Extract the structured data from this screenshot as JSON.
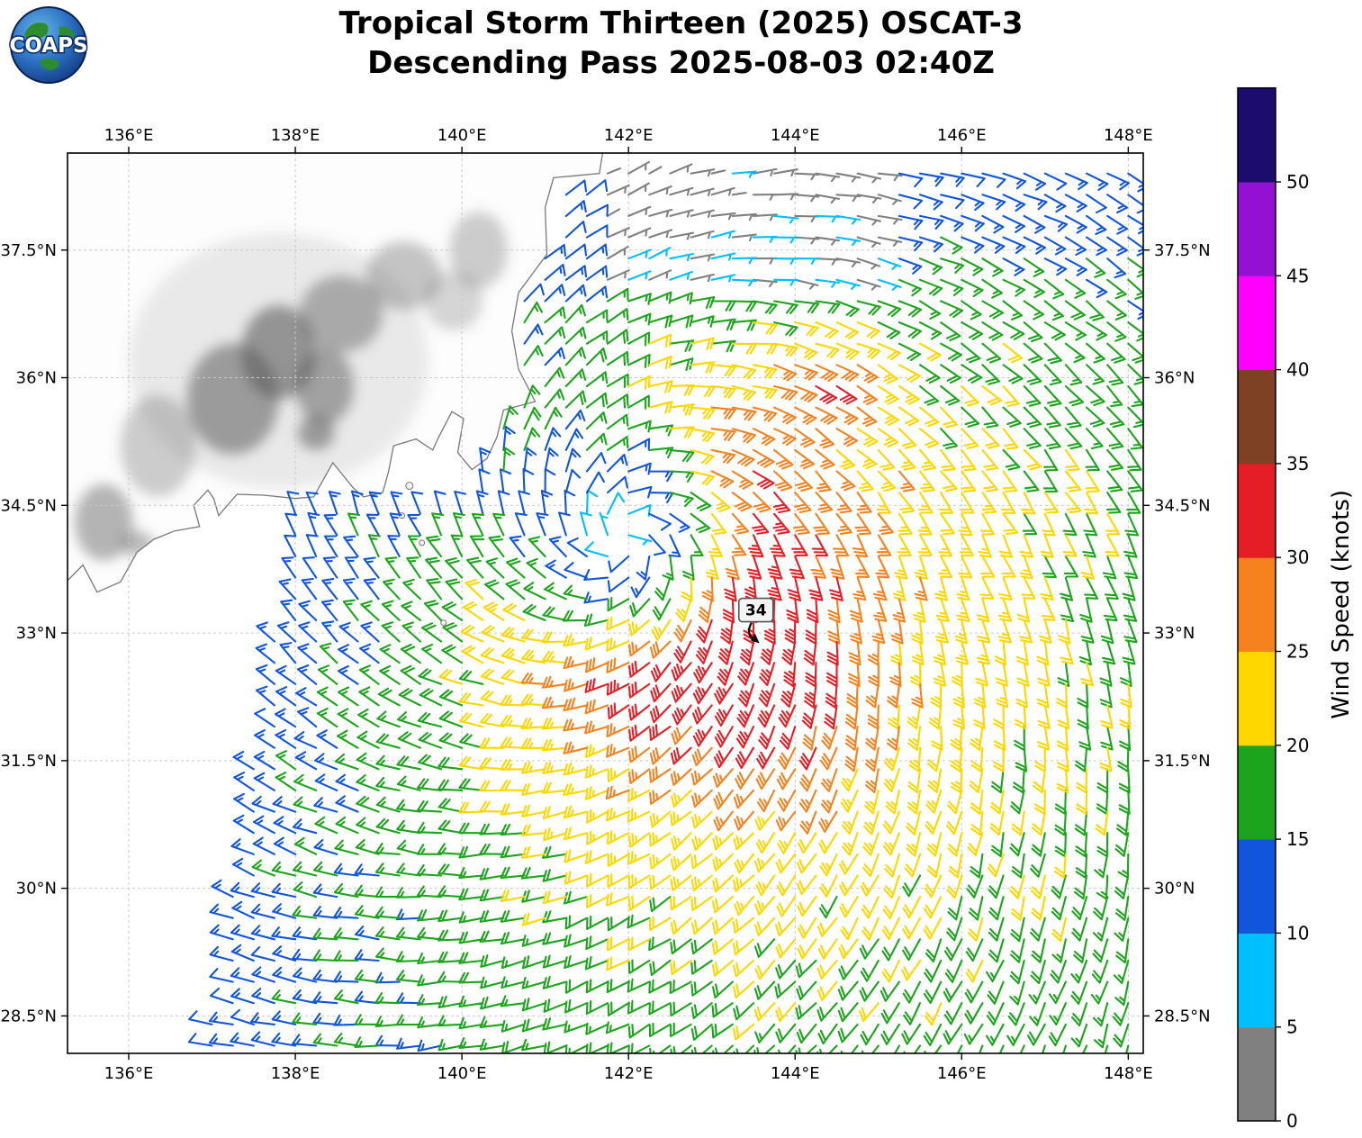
{
  "title": {
    "line1": "Tropical Storm Thirteen (2025) OSCAT-3",
    "line2": "Descending Pass 2025-08-03 02:40Z"
  },
  "logo": {
    "text": "COAPS"
  },
  "axes": {
    "extent": {
      "lon_min": 135.265,
      "lon_max": 148.18,
      "lat_min": 28.06,
      "lat_max": 38.64
    },
    "lon_ticks": [
      {
        "v": 136,
        "label": "136°E"
      },
      {
        "v": 138,
        "label": "138°E"
      },
      {
        "v": 140,
        "label": "140°E"
      },
      {
        "v": 142,
        "label": "142°E"
      },
      {
        "v": 144,
        "label": "144°E"
      },
      {
        "v": 146,
        "label": "146°E"
      },
      {
        "v": 148,
        "label": "148°E"
      }
    ],
    "lat_ticks": [
      {
        "v": 37.5,
        "label": "37.5°N"
      },
      {
        "v": 36,
        "label": "36°N"
      },
      {
        "v": 34.5,
        "label": "34.5°N"
      },
      {
        "v": 33,
        "label": "33°N"
      },
      {
        "v": 31.5,
        "label": "31.5°N"
      },
      {
        "v": 30,
        "label": "30°N"
      },
      {
        "v": 28.5,
        "label": "28.5°N"
      }
    ]
  },
  "colorbar": {
    "label": "Wind Speed (knots)",
    "range_kt": [
      0,
      55
    ],
    "tick_values": [
      0,
      5,
      10,
      15,
      20,
      25,
      30,
      35,
      40,
      45,
      50
    ],
    "segment_colors": [
      "#808080",
      "#00BFFF",
      "#1155DD",
      "#1CA41C",
      "#FFD700",
      "#F5821F",
      "#E51E25",
      "#7E4123",
      "#FF00FF",
      "#9410D3",
      "#1B0C6E"
    ]
  },
  "annotation": {
    "text": "34",
    "lon": 143.53,
    "lat": 33.27
  },
  "chart_data": {
    "type": "wind_barb_map",
    "instrument": "OSCAT-3",
    "pass_type": "Descending",
    "pass_time": "2025-08-03 02:40Z",
    "storm_name": "Tropical Storm Thirteen (2025)",
    "units": "knots",
    "speed_bin_edges_kt": [
      0,
      5,
      10,
      15,
      20,
      25,
      30,
      35,
      40,
      45,
      50,
      55
    ],
    "storm_center": {
      "lon": 141.95,
      "lat": 34.1
    },
    "max_wind_label_kt": 34,
    "barb_grid": {
      "lon_start": 137.0,
      "lon_end": 148.1,
      "lat_start": 28.15,
      "lat_end": 38.55,
      "step_deg": 0.25
    },
    "wind_model": {
      "rmax_deg": 1.7,
      "smax_kt": 26,
      "inner_base_kt": 6,
      "decay_exp": 0.45,
      "inflow_deg": 26,
      "asym_amp": 0.35,
      "asym_dir_offset": 0.6,
      "asym_ramp_deg": 1.2,
      "se_band": {
        "lon": 143.9,
        "lat": 32.2,
        "amp_kt": 5,
        "sigma": 1.1
      },
      "ne_cell": {
        "lon": 144.35,
        "lat": 35.95,
        "amp_kt": 8,
        "sig_lon": 0.7,
        "sig_lat": 0.45
      },
      "coast_lull": {
        "lon": 140.1,
        "lat": 34.65,
        "amp_kt": 6,
        "sig_lon": 0.7,
        "sig_lat": 0.42
      },
      "north_damp": 0.22,
      "north_damp_start": 36.5,
      "north_damp_span": 2.2,
      "lowwind_box": {
        "lat_min": 37.05,
        "lon_min": 141.7,
        "lon_max": 145.2,
        "factor": 0.3
      },
      "swath_west": {
        "lon_at_lat_min": 136.9,
        "slope_deg_per_deg": 0.17,
        "apply_below_lat": 34.6
      },
      "bay_mask": {
        "lat_min": 34.55,
        "lat_max": 35.45,
        "lon_max": 140.25
      }
    }
  },
  "map": {
    "coastline": [
      [
        135.2,
        33.55
      ],
      [
        135.45,
        33.8
      ],
      [
        135.62,
        33.48
      ],
      [
        135.9,
        33.6
      ],
      [
        136.1,
        33.95
      ],
      [
        136.3,
        34.1
      ],
      [
        136.55,
        34.2
      ],
      [
        136.85,
        34.25
      ],
      [
        136.78,
        34.5
      ],
      [
        136.95,
        34.68
      ],
      [
        137.02,
        34.58
      ],
      [
        137.08,
        34.38
      ],
      [
        137.3,
        34.63
      ],
      [
        137.62,
        34.62
      ],
      [
        138.0,
        34.58
      ],
      [
        138.22,
        34.6
      ],
      [
        138.45,
        35.0
      ],
      [
        138.7,
        34.7
      ],
      [
        138.82,
        34.6
      ],
      [
        139.05,
        34.65
      ],
      [
        139.12,
        34.9
      ],
      [
        139.18,
        35.2
      ],
      [
        139.45,
        35.28
      ],
      [
        139.65,
        35.15
      ],
      [
        139.72,
        35.3
      ],
      [
        139.88,
        35.6
      ],
      [
        140.02,
        35.52
      ],
      [
        139.95,
        35.12
      ],
      [
        140.12,
        34.92
      ],
      [
        140.3,
        35.05
      ],
      [
        140.42,
        35.3
      ],
      [
        140.5,
        35.62
      ],
      [
        140.88,
        35.72
      ],
      [
        140.68,
        36.1
      ],
      [
        140.6,
        36.55
      ],
      [
        140.68,
        37.0
      ],
      [
        141.02,
        37.45
      ],
      [
        141.0,
        38.0
      ],
      [
        141.1,
        38.35
      ],
      [
        141.65,
        38.4
      ],
      [
        141.75,
        39.0
      ],
      [
        135.2,
        39.0
      ]
    ],
    "islands": [
      {
        "lon": 139.37,
        "lat": 34.73,
        "r": 4
      },
      {
        "lon": 139.28,
        "lat": 34.38,
        "r": 3
      },
      {
        "lon": 139.52,
        "lat": 34.06,
        "r": 3
      },
      {
        "lon": 139.6,
        "lat": 33.85,
        "r": 2.5
      },
      {
        "lon": 139.78,
        "lat": 33.12,
        "r": 3
      }
    ],
    "terrain": [
      {
        "lon": 135.7,
        "lat": 34.3,
        "rx": 0.35,
        "ry": 0.45,
        "o": 0.45
      },
      {
        "lon": 136.1,
        "lat": 34.05,
        "rx": 0.2,
        "ry": 0.15,
        "o": 0.4
      },
      {
        "lon": 136.35,
        "lat": 35.2,
        "rx": 0.45,
        "ry": 0.6,
        "o": 0.3
      },
      {
        "lon": 137.25,
        "lat": 35.75,
        "rx": 0.55,
        "ry": 0.65,
        "o": 0.55
      },
      {
        "lon": 137.8,
        "lat": 36.3,
        "rx": 0.45,
        "ry": 0.55,
        "o": 0.6
      },
      {
        "lon": 138.35,
        "lat": 35.9,
        "rx": 0.35,
        "ry": 0.45,
        "o": 0.5
      },
      {
        "lon": 138.55,
        "lat": 36.75,
        "rx": 0.5,
        "ry": 0.45,
        "o": 0.45
      },
      {
        "lon": 139.3,
        "lat": 37.2,
        "rx": 0.45,
        "ry": 0.4,
        "o": 0.35
      },
      {
        "lon": 139.9,
        "lat": 36.9,
        "rx": 0.35,
        "ry": 0.35,
        "o": 0.25
      },
      {
        "lon": 138.25,
        "lat": 35.35,
        "rx": 0.22,
        "ry": 0.2,
        "o": 0.55
      },
      {
        "lon": 140.2,
        "lat": 37.5,
        "rx": 0.35,
        "ry": 0.45,
        "o": 0.3
      },
      {
        "lon": 137.8,
        "lat": 36.2,
        "rx": 1.8,
        "ry": 1.5,
        "o": 0.12
      }
    ]
  }
}
